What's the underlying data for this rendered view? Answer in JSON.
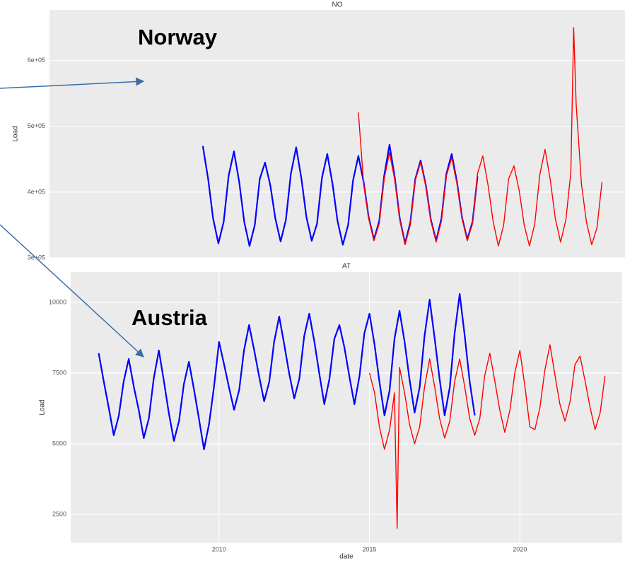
{
  "chart_data": [
    {
      "type": "line",
      "title": "NO",
      "ylabel": "Load",
      "annotations": [
        "Norway"
      ],
      "xlim": [
        2005.07,
        2023.57
      ],
      "ylim": [
        300000,
        677000
      ],
      "yticks": [
        {
          "value": 300000,
          "label": "3e+05"
        },
        {
          "value": 400000,
          "label": "4e+05"
        },
        {
          "value": 500000,
          "label": "5e+05"
        },
        {
          "value": 600000,
          "label": "6e+05"
        }
      ],
      "grid": true,
      "series": [
        {
          "color": "#0000ff",
          "x": [
            2010.0,
            2010.17,
            2010.33,
            2010.5,
            2010.67,
            2010.83,
            2011.0,
            2011.17,
            2011.33,
            2011.5,
            2011.67,
            2011.83,
            2012.0,
            2012.17,
            2012.33,
            2012.5,
            2012.67,
            2012.83,
            2013.0,
            2013.17,
            2013.33,
            2013.5,
            2013.67,
            2013.83,
            2014.0,
            2014.17,
            2014.33,
            2014.5,
            2014.67,
            2014.83,
            2015.0,
            2015.17,
            2015.33,
            2015.5,
            2015.67,
            2015.83,
            2016.0,
            2016.17,
            2016.33,
            2016.5,
            2016.67,
            2016.83,
            2017.0,
            2017.17,
            2017.33,
            2017.5,
            2017.67,
            2017.83,
            2018.0,
            2018.17,
            2018.33,
            2018.5,
            2018.67,
            2018.83
          ],
          "values": [
            470000,
            420000,
            360000,
            322000,
            355000,
            425000,
            462000,
            415000,
            355000,
            318000,
            350000,
            420000,
            445000,
            410000,
            360000,
            325000,
            358000,
            428000,
            468000,
            420000,
            362000,
            326000,
            352000,
            422000,
            458000,
            412000,
            356000,
            320000,
            350000,
            418000,
            455000,
            415000,
            362000,
            328000,
            356000,
            425000,
            472000,
            422000,
            360000,
            322000,
            354000,
            420000,
            448000,
            410000,
            358000,
            326000,
            360000,
            428000,
            458000,
            415000,
            362000,
            328000,
            355000,
            424000
          ]
        },
        {
          "color": "#ff0000",
          "x": [
            2015.0,
            2015.17,
            2015.33,
            2015.5,
            2015.67,
            2015.83,
            2016.0,
            2016.17,
            2016.33,
            2016.5,
            2016.67,
            2016.83,
            2017.0,
            2017.17,
            2017.33,
            2017.5,
            2017.67,
            2017.83,
            2018.0,
            2018.17,
            2018.33,
            2018.5,
            2018.67,
            2018.83,
            2019.0,
            2019.17,
            2019.33,
            2019.5,
            2019.67,
            2019.83,
            2020.0,
            2020.17,
            2020.33,
            2020.5,
            2020.67,
            2020.83,
            2021.0,
            2021.17,
            2021.33,
            2021.5,
            2021.67,
            2021.83,
            2021.92,
            2022.0,
            2022.17,
            2022.33,
            2022.5,
            2022.67,
            2022.83
          ],
          "values": [
            521000,
            412000,
            360000,
            326000,
            352000,
            420000,
            460000,
            418000,
            358000,
            320000,
            350000,
            418000,
            445000,
            408000,
            356000,
            324000,
            356000,
            425000,
            452000,
            412000,
            360000,
            326000,
            352000,
            428000,
            455000,
            410000,
            356000,
            318000,
            350000,
            420000,
            440000,
            402000,
            350000,
            318000,
            352000,
            426000,
            465000,
            418000,
            360000,
            324000,
            358000,
            430000,
            650000,
            534000,
            412000,
            355000,
            320000,
            346000,
            415000
          ]
        }
      ]
    },
    {
      "type": "line",
      "title": "AT",
      "xlabel": "date",
      "ylabel": "Load",
      "annotations": [
        "Austria"
      ],
      "xlim": [
        2005.07,
        2023.4
      ],
      "ylim": [
        1500,
        11075
      ],
      "xticks": [
        2010,
        2015,
        2020
      ],
      "yticks": [
        2500,
        5000,
        7500,
        10000
      ],
      "grid": true,
      "series": [
        {
          "color": "#0000ff",
          "x": [
            2006.0,
            2006.17,
            2006.33,
            2006.5,
            2006.67,
            2006.83,
            2007.0,
            2007.17,
            2007.33,
            2007.5,
            2007.67,
            2007.83,
            2008.0,
            2008.17,
            2008.33,
            2008.5,
            2008.67,
            2008.83,
            2009.0,
            2009.17,
            2009.33,
            2009.5,
            2009.67,
            2009.83,
            2010.0,
            2010.17,
            2010.33,
            2010.5,
            2010.67,
            2010.83,
            2011.0,
            2011.17,
            2011.33,
            2011.5,
            2011.67,
            2011.83,
            2012.0,
            2012.17,
            2012.33,
            2012.5,
            2012.67,
            2012.83,
            2013.0,
            2013.17,
            2013.33,
            2013.5,
            2013.67,
            2013.83,
            2014.0,
            2014.17,
            2014.33,
            2014.5,
            2014.67,
            2014.83,
            2015.0,
            2015.17,
            2015.33,
            2015.5,
            2015.67,
            2015.83,
            2016.0,
            2016.17,
            2016.33,
            2016.5,
            2016.67,
            2016.83,
            2017.0,
            2017.17,
            2017.33,
            2017.5,
            2017.67,
            2017.83,
            2018.0,
            2018.17,
            2018.33,
            2018.5
          ],
          "values": [
            8200,
            7200,
            6300,
            5300,
            6000,
            7200,
            8000,
            7000,
            6200,
            5200,
            5900,
            7300,
            8300,
            7200,
            6100,
            5100,
            5800,
            7100,
            7900,
            6900,
            5900,
            4800,
            5700,
            7000,
            8600,
            7800,
            7000,
            6200,
            6900,
            8300,
            9200,
            8300,
            7400,
            6500,
            7200,
            8600,
            9500,
            8500,
            7500,
            6600,
            7300,
            8800,
            9600,
            8600,
            7500,
            6400,
            7300,
            8700,
            9200,
            8400,
            7400,
            6400,
            7400,
            8900,
            9600,
            8500,
            7200,
            6000,
            6900,
            8700,
            9700,
            8600,
            7300,
            6100,
            7000,
            8800,
            10100,
            8700,
            7300,
            6000,
            7000,
            8900,
            10300,
            8800,
            7200,
            6000
          ]
        },
        {
          "color": "#ff0000",
          "x": [
            2015.0,
            2015.17,
            2015.33,
            2015.5,
            2015.67,
            2015.83,
            2015.92,
            2016.0,
            2016.17,
            2016.33,
            2016.5,
            2016.67,
            2016.83,
            2017.0,
            2017.17,
            2017.33,
            2017.5,
            2017.67,
            2017.83,
            2018.0,
            2018.17,
            2018.33,
            2018.5,
            2018.67,
            2018.83,
            2019.0,
            2019.17,
            2019.33,
            2019.5,
            2019.67,
            2019.83,
            2020.0,
            2020.17,
            2020.33,
            2020.5,
            2020.67,
            2020.83,
            2021.0,
            2021.17,
            2021.33,
            2021.5,
            2021.67,
            2021.83,
            2022.0,
            2022.17,
            2022.33,
            2022.5,
            2022.67,
            2022.83
          ],
          "values": [
            7500,
            6800,
            5600,
            4800,
            5500,
            6800,
            2000,
            7700,
            6800,
            5700,
            5000,
            5600,
            7000,
            8000,
            7000,
            5900,
            5200,
            5800,
            7200,
            8000,
            7000,
            5900,
            5300,
            5900,
            7400,
            8200,
            7200,
            6200,
            5400,
            6200,
            7500,
            8300,
            7000,
            5600,
            5500,
            6300,
            7600,
            8500,
            7400,
            6400,
            5800,
            6500,
            7800,
            8100,
            7200,
            6300,
            5500,
            6100,
            7400
          ]
        }
      ]
    }
  ]
}
